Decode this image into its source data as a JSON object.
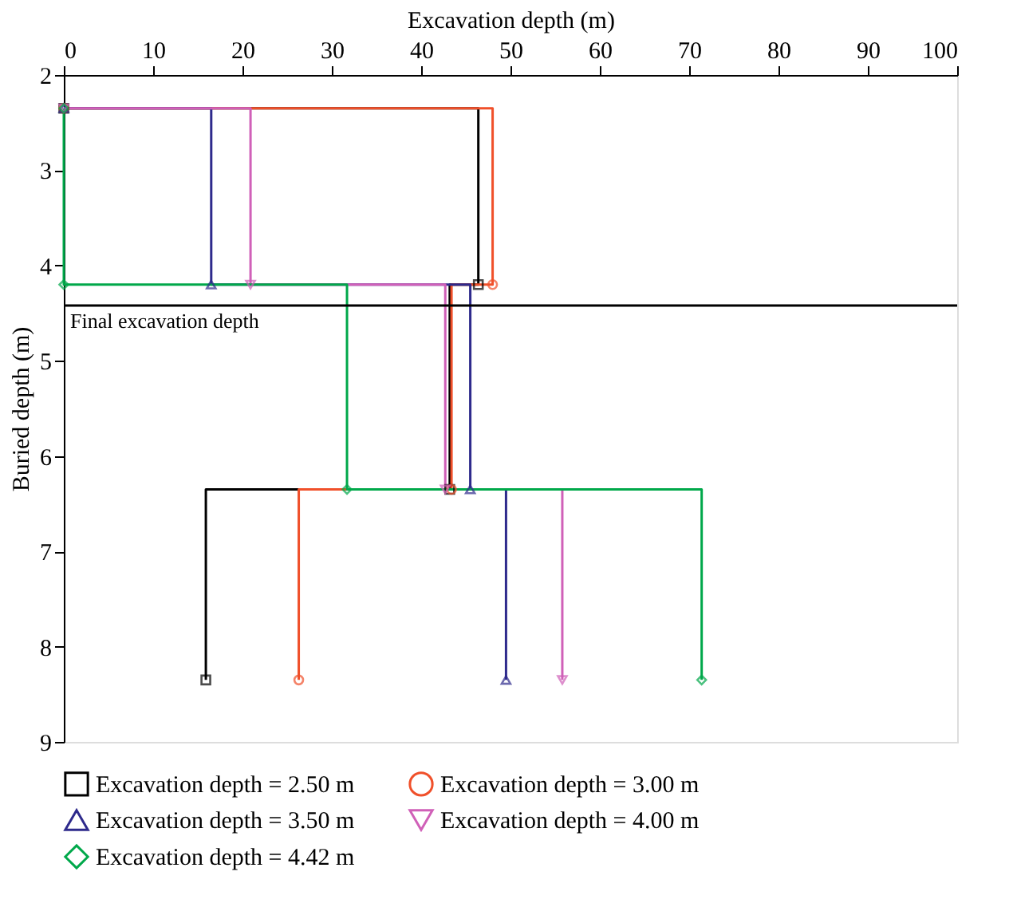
{
  "chart_data": {
    "type": "step",
    "xlabel": "Excavation depth (m)",
    "ylabel": "Buried depth (m)",
    "xlim": [
      0,
      100
    ],
    "xticks": [
      0,
      10,
      20,
      30,
      40,
      50,
      60,
      70,
      80,
      90,
      100
    ],
    "ylim": [
      9,
      2
    ],
    "yticks": [
      2,
      3,
      4,
      5,
      6,
      7,
      8,
      9
    ],
    "grid": false,
    "legend": "bottom",
    "line_style": "solid",
    "series": [
      {
        "name": "Excavation depth = 2.50 m",
        "color": "#000000",
        "marker": "square",
        "x": [
          0,
          46.4,
          43.2,
          15.9
        ],
        "values": [
          2.35,
          4.2,
          6.35,
          8.35
        ]
      },
      {
        "name": "Excavation depth = 3.00 m",
        "color": "#f0502a",
        "marker": "circle",
        "x": [
          0,
          48.0,
          43.4,
          26.3
        ],
        "values": [
          2.35,
          4.2,
          6.35,
          8.35
        ]
      },
      {
        "name": "Excavation depth = 3.50 m",
        "color": "#2e2a8c",
        "marker": "triangle-up",
        "x": [
          0,
          16.5,
          45.5,
          49.5
        ],
        "values": [
          2.35,
          4.2,
          6.35,
          8.35
        ]
      },
      {
        "name": "Excavation depth = 4.00 m",
        "color": "#d060b8",
        "marker": "triangle-down",
        "x": [
          0,
          20.9,
          42.7,
          55.8
        ],
        "values": [
          2.35,
          4.2,
          6.35,
          8.35
        ]
      },
      {
        "name": "Excavation depth = 4.42 m",
        "color": "#00a84a",
        "marker": "diamond",
        "x": [
          0,
          0,
          31.7,
          71.4
        ],
        "values": [
          2.35,
          4.2,
          6.35,
          8.35
        ]
      }
    ],
    "ref_lines": [
      {
        "axis": "y",
        "value": 4.42,
        "label": "Final excavation depth",
        "color": "#000000"
      }
    ]
  }
}
